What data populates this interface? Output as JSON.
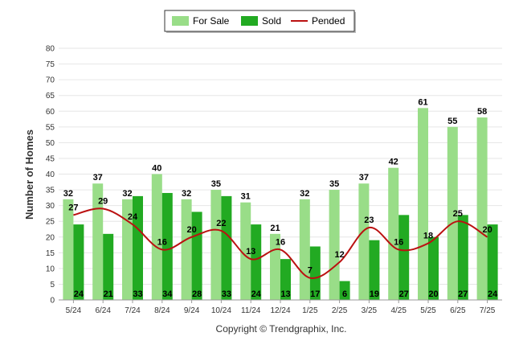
{
  "chart_data": {
    "type": "bar",
    "categories": [
      "5/24",
      "6/24",
      "7/24",
      "8/24",
      "9/24",
      "10/24",
      "11/24",
      "12/24",
      "1/25",
      "2/25",
      "3/25",
      "4/25",
      "5/25",
      "6/25",
      "7/25"
    ],
    "series": [
      {
        "name": "For Sale",
        "kind": "bar",
        "color": "#99dd88",
        "values": [
          32,
          37,
          32,
          40,
          32,
          35,
          31,
          21,
          32,
          35,
          37,
          42,
          61,
          55,
          58
        ]
      },
      {
        "name": "Sold",
        "kind": "bar",
        "color": "#22aa22",
        "values": [
          24,
          21,
          33,
          34,
          28,
          33,
          24,
          13,
          17,
          6,
          19,
          27,
          20,
          27,
          24
        ]
      },
      {
        "name": "Pended",
        "kind": "line",
        "color": "#bb1111",
        "values": [
          27,
          29,
          24,
          16,
          20,
          22,
          13,
          16,
          7,
          12,
          23,
          16,
          18,
          25,
          20
        ]
      }
    ],
    "ylabel": "Number of Homes",
    "xlabel": "",
    "ylim": [
      0,
      80
    ],
    "yticks": [
      0,
      5,
      10,
      15,
      20,
      25,
      30,
      35,
      40,
      45,
      50,
      55,
      60,
      65,
      70,
      75,
      80
    ],
    "grid": true,
    "legend_position": "top-center"
  },
  "footer": {
    "copyright": "Copyright © Trendgraphix, Inc."
  }
}
